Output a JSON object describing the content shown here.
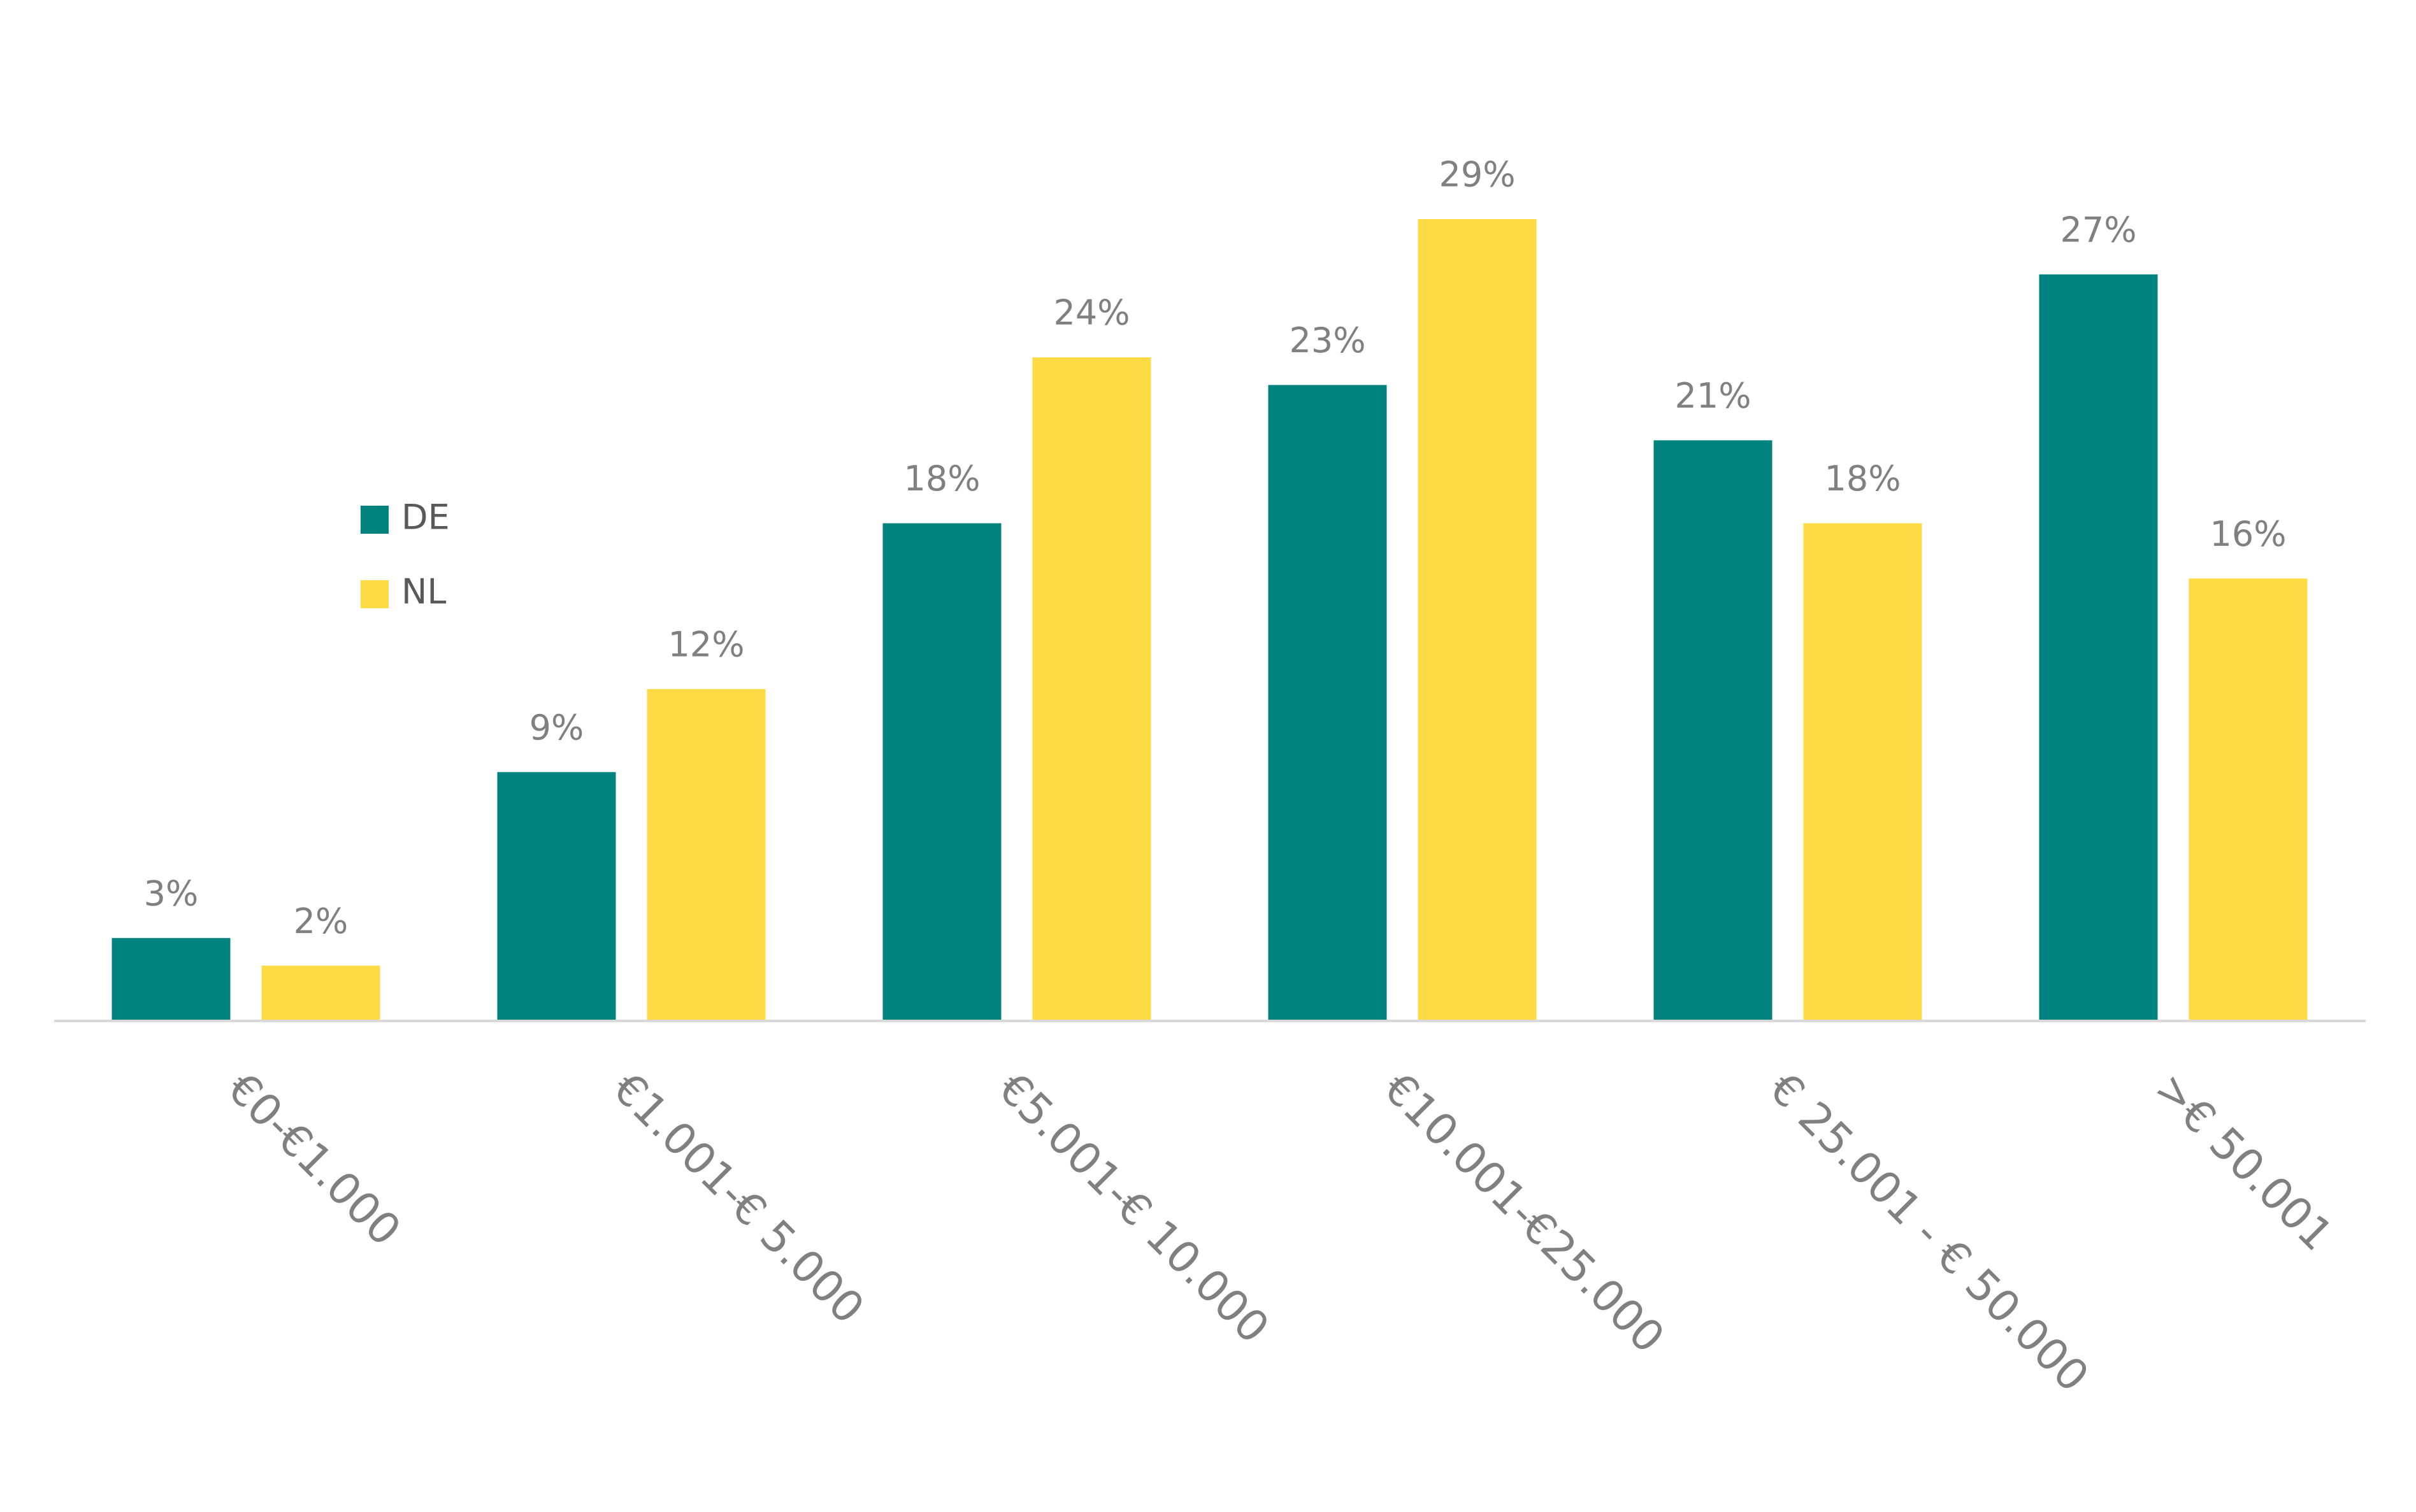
{
  "chart_data": {
    "type": "bar",
    "categories": [
      "€0-€1.000",
      "€1.001-€ 5.000",
      "€5.001-€ 10.000",
      "€10.001-€25.000",
      "€ 25.001 - € 50.000",
      ">€ 50.001"
    ],
    "series": [
      {
        "name": "DE",
        "color": "#00837f",
        "values": [
          3,
          9,
          18,
          23,
          21,
          27
        ],
        "value_labels": [
          "3%",
          "9%",
          "18%",
          "23%",
          "21%",
          "27%"
        ]
      },
      {
        "name": "NL",
        "color": "#fedb45",
        "values": [
          2,
          12,
          24,
          29,
          18,
          16
        ],
        "value_labels": [
          "2%",
          "12%",
          "24%",
          "29%",
          "18%",
          "16%"
        ]
      }
    ]
  }
}
